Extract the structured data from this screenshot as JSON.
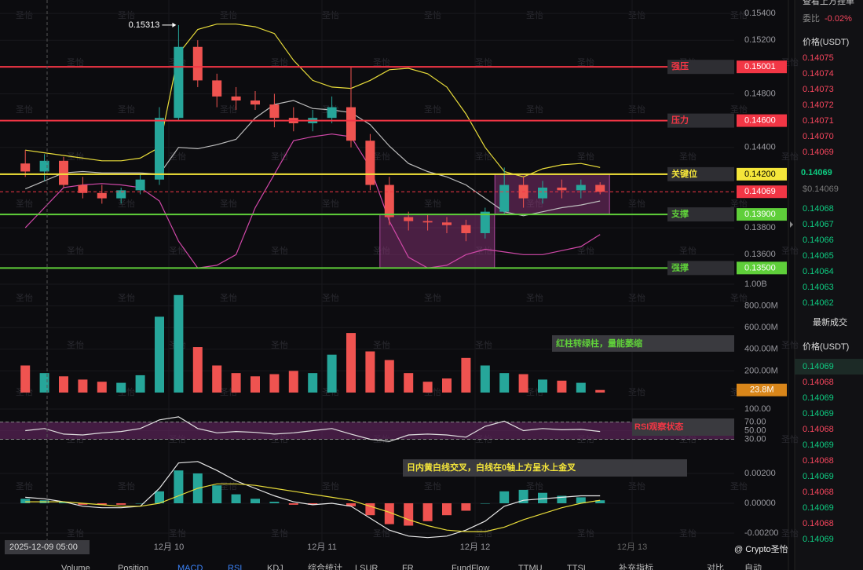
{
  "header": {
    "title": "查看上方挂单",
    "ratio_label": "委比",
    "ratio": "-0.02%"
  },
  "chart_data": [
    {
      "type": "candlestick",
      "up_color": "#26a69a",
      "down_color": "#ef5350",
      "open": [
        0.1428,
        0.1422,
        0.143,
        0.1412,
        0.1406,
        0.1402,
        0.1408,
        0.1416,
        0.1462,
        0.1515,
        0.149,
        0.1478,
        0.1475,
        0.1472,
        0.1462,
        0.1458,
        0.1462,
        0.147,
        0.1445,
        0.1412,
        0.1388,
        0.1385,
        0.1384,
        0.1382,
        0.1376,
        0.1392,
        0.1412,
        0.1402,
        0.141,
        0.1408,
        0.1412
      ],
      "high": [
        0.1438,
        0.1435,
        0.1433,
        0.1418,
        0.1412,
        0.141,
        0.142,
        0.147,
        0.15313,
        0.152,
        0.1495,
        0.1485,
        0.1482,
        0.148,
        0.147,
        0.1468,
        0.1478,
        0.15,
        0.145,
        0.1418,
        0.1392,
        0.139,
        0.1388,
        0.1386,
        0.1395,
        0.1425,
        0.1418,
        0.1415,
        0.1416,
        0.1416,
        0.1414
      ],
      "low": [
        0.1418,
        0.1415,
        0.141,
        0.1402,
        0.1398,
        0.1398,
        0.1405,
        0.1412,
        0.146,
        0.1485,
        0.147,
        0.1468,
        0.1468,
        0.1455,
        0.1452,
        0.1452,
        0.1458,
        0.144,
        0.1408,
        0.1382,
        0.1378,
        0.1378,
        0.1376,
        0.137,
        0.1372,
        0.139,
        0.1395,
        0.1398,
        0.1402,
        0.1402,
        0.1405
      ],
      "close": [
        0.1422,
        0.143,
        0.1412,
        0.1406,
        0.1402,
        0.1408,
        0.1416,
        0.1462,
        0.1515,
        0.149,
        0.1478,
        0.1475,
        0.1472,
        0.1462,
        0.1458,
        0.1462,
        0.147,
        0.1445,
        0.1412,
        0.1388,
        0.1385,
        0.1384,
        0.1382,
        0.1376,
        0.1392,
        0.1412,
        0.1402,
        0.141,
        0.1408,
        0.1412,
        0.14069
      ],
      "overlays": [
        {
          "color": "#e8dc3a",
          "values": [
            0.1438,
            0.1436,
            0.1434,
            0.1432,
            0.143,
            0.143,
            0.1432,
            0.144,
            0.151,
            0.1528,
            0.1532,
            0.1532,
            0.153,
            0.1525,
            0.1505,
            0.149,
            0.1485,
            0.1484,
            0.149,
            0.1498,
            0.1499,
            0.1495,
            0.1485,
            0.1465,
            0.144,
            0.1422,
            0.1418,
            0.1424,
            0.1427,
            0.1428,
            0.1425
          ]
        },
        {
          "color": "#bdbdbd",
          "values": [
            0.1409,
            0.1415,
            0.1421,
            0.1422,
            0.1421,
            0.1421,
            0.1421,
            0.142,
            0.144,
            0.1439,
            0.1442,
            0.1446,
            0.1462,
            0.1472,
            0.1475,
            0.1469,
            0.1468,
            0.1466,
            0.1457,
            0.1441,
            0.1428,
            0.1422,
            0.1418,
            0.1412,
            0.1402,
            0.1392,
            0.1389,
            0.1392,
            0.1395,
            0.1397,
            0.14
          ]
        },
        {
          "color": "#d048a8",
          "values": [
            0.138,
            0.1395,
            0.141,
            0.1412,
            0.1413,
            0.1412,
            0.141,
            0.14,
            0.137,
            0.135,
            0.1352,
            0.136,
            0.1395,
            0.142,
            0.1445,
            0.1448,
            0.145,
            0.1448,
            0.1425,
            0.1385,
            0.1358,
            0.135,
            0.1352,
            0.136,
            0.1364,
            0.1362,
            0.136,
            0.136,
            0.1363,
            0.1366,
            0.1375
          ]
        }
      ],
      "ylim": [
        0.1342,
        0.155
      ],
      "yticks": [
        {
          "value": 0.154,
          "label": "0.15400"
        },
        {
          "value": 0.152,
          "label": "0.15200"
        },
        {
          "value": 0.148,
          "label": "0.14800"
        },
        {
          "value": 0.144,
          "label": "0.14400"
        },
        {
          "value": 0.138,
          "label": "0.13800"
        },
        {
          "value": 0.136,
          "label": "0.13600"
        }
      ],
      "levels": [
        {
          "name": "强压",
          "value": 0.15001,
          "label": "0.15001",
          "color": "#f23645"
        },
        {
          "name": "压力",
          "value": 0.146,
          "label": "0.14600",
          "color": "#f23645"
        },
        {
          "name": "关键位",
          "value": 0.142,
          "label": "0.14200",
          "color": "#f5e63a"
        },
        {
          "name": "支撑",
          "value": 0.139,
          "label": "0.13900",
          "color": "#5fcf3a"
        },
        {
          "name": "强撑",
          "value": 0.135,
          "label": "0.13500",
          "color": "#5fcf3a"
        }
      ],
      "current": {
        "value": 0.14069,
        "label": "0.14069",
        "color": "#f23645"
      },
      "high_label": "0.15313"
    },
    {
      "type": "bar",
      "values": [
        250000000,
        180000000,
        150000000,
        120000000,
        100000000,
        90000000,
        160000000,
        700000000,
        900000000,
        420000000,
        250000000,
        180000000,
        150000000,
        170000000,
        200000000,
        180000000,
        350000000,
        550000000,
        380000000,
        300000000,
        180000000,
        100000000,
        130000000,
        320000000,
        250000000,
        180000000,
        170000000,
        120000000,
        110000000,
        90000000,
        23800000
      ],
      "last_label": "23.8M",
      "ylim": [
        0,
        1000000000
      ],
      "yticks": [
        {
          "value": 1000000000,
          "label": "1.00B"
        },
        {
          "value": 800000000,
          "label": "800.00M"
        },
        {
          "value": 600000000,
          "label": "600.00M"
        },
        {
          "value": 400000000,
          "label": "400.00M"
        },
        {
          "value": 200000000,
          "label": "200.00M"
        }
      ],
      "annotation": "红柱转绿柱，量能萎缩",
      "annotation_color": "#5fcf3a"
    },
    {
      "type": "line",
      "color": "#e0e0e0",
      "band_color": "#5b2458",
      "values": [
        50,
        55,
        42,
        40,
        45,
        48,
        55,
        75,
        82,
        55,
        45,
        48,
        46,
        42,
        45,
        50,
        55,
        42,
        30,
        25,
        40,
        42,
        40,
        35,
        60,
        72,
        50,
        55,
        52,
        53,
        48
      ],
      "ylim": [
        0,
        100
      ],
      "yticks": [
        {
          "value": 100,
          "label": "100.00"
        },
        {
          "value": 70,
          "label": "70.00"
        },
        {
          "value": 50,
          "label": "50.00"
        },
        {
          "value": 30,
          "label": "30.00"
        }
      ],
      "annotation": "RSI观察状态",
      "annotation_color": "#f23645"
    },
    {
      "type": "macd",
      "up_color": "#26a69a",
      "down_color": "#ef5350",
      "dif_color": "#e8e8e8",
      "dea_color": "#e8dc3a",
      "histogram": [
        0.0003,
        0.0002,
        0.0001,
        -0.0001,
        -0.0001,
        -0.0001,
        0,
        0.0008,
        0.0022,
        0.002,
        0.0012,
        0.0006,
        0.0003,
        0.0001,
        -0.0001,
        -0.0001,
        0,
        -0.0002,
        -0.0008,
        -0.0014,
        -0.0015,
        -0.0012,
        -0.0008,
        -0.0005,
        0,
        0.0008,
        0.0009,
        0.0007,
        0.0005,
        0.0004,
        0.0002
      ],
      "dif": [
        0.0004,
        0.0003,
        0.0001,
        -0.0002,
        -0.0003,
        -0.0003,
        -0.0002,
        0.001,
        0.0027,
        0.0028,
        0.0022,
        0.0015,
        0.001,
        0.0005,
        0.0001,
        -0.0001,
        0,
        -0.0002,
        -0.001,
        -0.0018,
        -0.0022,
        -0.0023,
        -0.0022,
        -0.0018,
        -0.0012,
        -0.0002,
        0.0002,
        0.0003,
        0.0004,
        0.0005,
        0.0005
      ],
      "dea": [
        0.0001,
        0.0001,
        0.0001,
        0,
        -0.0001,
        -0.0002,
        -0.0002,
        0,
        0.0005,
        0.001,
        0.0013,
        0.0013,
        0.0012,
        0.001,
        0.0008,
        0.0006,
        0.0004,
        0.0002,
        -0.0002,
        -0.0006,
        -0.0011,
        -0.0015,
        -0.0018,
        -0.0019,
        -0.0019,
        -0.0016,
        -0.0011,
        -0.0007,
        -0.0003,
        0,
        0.0002
      ],
      "ylim": [
        -0.0025,
        0.0025
      ],
      "yticks": [
        {
          "value": 0.002,
          "label": "0.00200"
        },
        {
          "value": 0,
          "label": "0.00000"
        },
        {
          "value": -0.002,
          "label": "-0.00200"
        }
      ],
      "annotation": "日内黄白线交叉，白线在0轴上方呈水上金叉",
      "annotation_color": "#f5e63a"
    }
  ],
  "x_axis": {
    "cursor": "2025-12-09 05:00",
    "labels": [
      "12月 10",
      "12月 11",
      "12月 12",
      "12月 13"
    ]
  },
  "watermark": "圣怡",
  "order_book": {
    "price_header": "价格(USDT)",
    "asks": [
      "0.14075",
      "0.14074",
      "0.14073",
      "0.14072",
      "0.14071",
      "0.14070",
      "0.14069"
    ],
    "last": "0.14069",
    "last_usd": "$0.14069",
    "bids": [
      "0.14068",
      "0.14067",
      "0.14066",
      "0.14065",
      "0.14064",
      "0.14063",
      "0.14062"
    ],
    "trades_title": "最新成交",
    "trades_header": "价格(USDT)",
    "trades": [
      {
        "price": "0.14069",
        "side": "buy"
      },
      {
        "price": "0.14068",
        "side": "sell"
      },
      {
        "price": "0.14069",
        "side": "buy"
      },
      {
        "price": "0.14069",
        "side": "buy"
      },
      {
        "price": "0.14068",
        "side": "sell"
      },
      {
        "price": "0.14069",
        "side": "buy"
      },
      {
        "price": "0.14068",
        "side": "sell"
      },
      {
        "price": "0.14069",
        "side": "buy"
      },
      {
        "price": "0.14068",
        "side": "sell"
      },
      {
        "price": "0.14069",
        "side": "buy"
      },
      {
        "price": "0.14068",
        "side": "sell"
      },
      {
        "price": "0.14069",
        "side": "buy"
      }
    ]
  },
  "tabs": [
    "Volume",
    "Position",
    "MACD",
    "RSI",
    "KDJ",
    "综合统计",
    "LSUR",
    "FR",
    "FundFlow",
    "TTMU",
    "TTSI",
    "补充指标",
    "对比",
    "自动"
  ],
  "footer_watermark": "@ Crypto圣怡"
}
